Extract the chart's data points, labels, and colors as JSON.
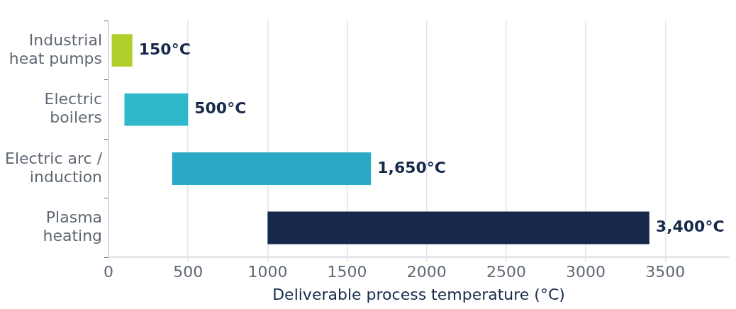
{
  "chart_data": {
    "type": "bar",
    "orientation": "horizontal",
    "xlabel": "Deliverable process temperature (°C)",
    "categories": [
      "Industrial\nheat pumps",
      "Electric\nboilers",
      "Electric arc /\ninduction",
      "Plasma\nheating"
    ],
    "values": [
      130,
      400,
      1250,
      2400
    ],
    "base": [
      20,
      100,
      400,
      1000
    ],
    "colors": [
      "#b0cf2a",
      "#2fb8c9",
      "#29a9c6",
      "#16294a"
    ],
    "value_labels": [
      "150°C",
      "500°C",
      "1,650°C",
      "3,400°C"
    ],
    "xlim": [
      0,
      3900
    ],
    "xticks": [
      0,
      500,
      1000,
      1500,
      2000,
      2500,
      3000,
      3500
    ],
    "grid": "x",
    "legend": false
  }
}
